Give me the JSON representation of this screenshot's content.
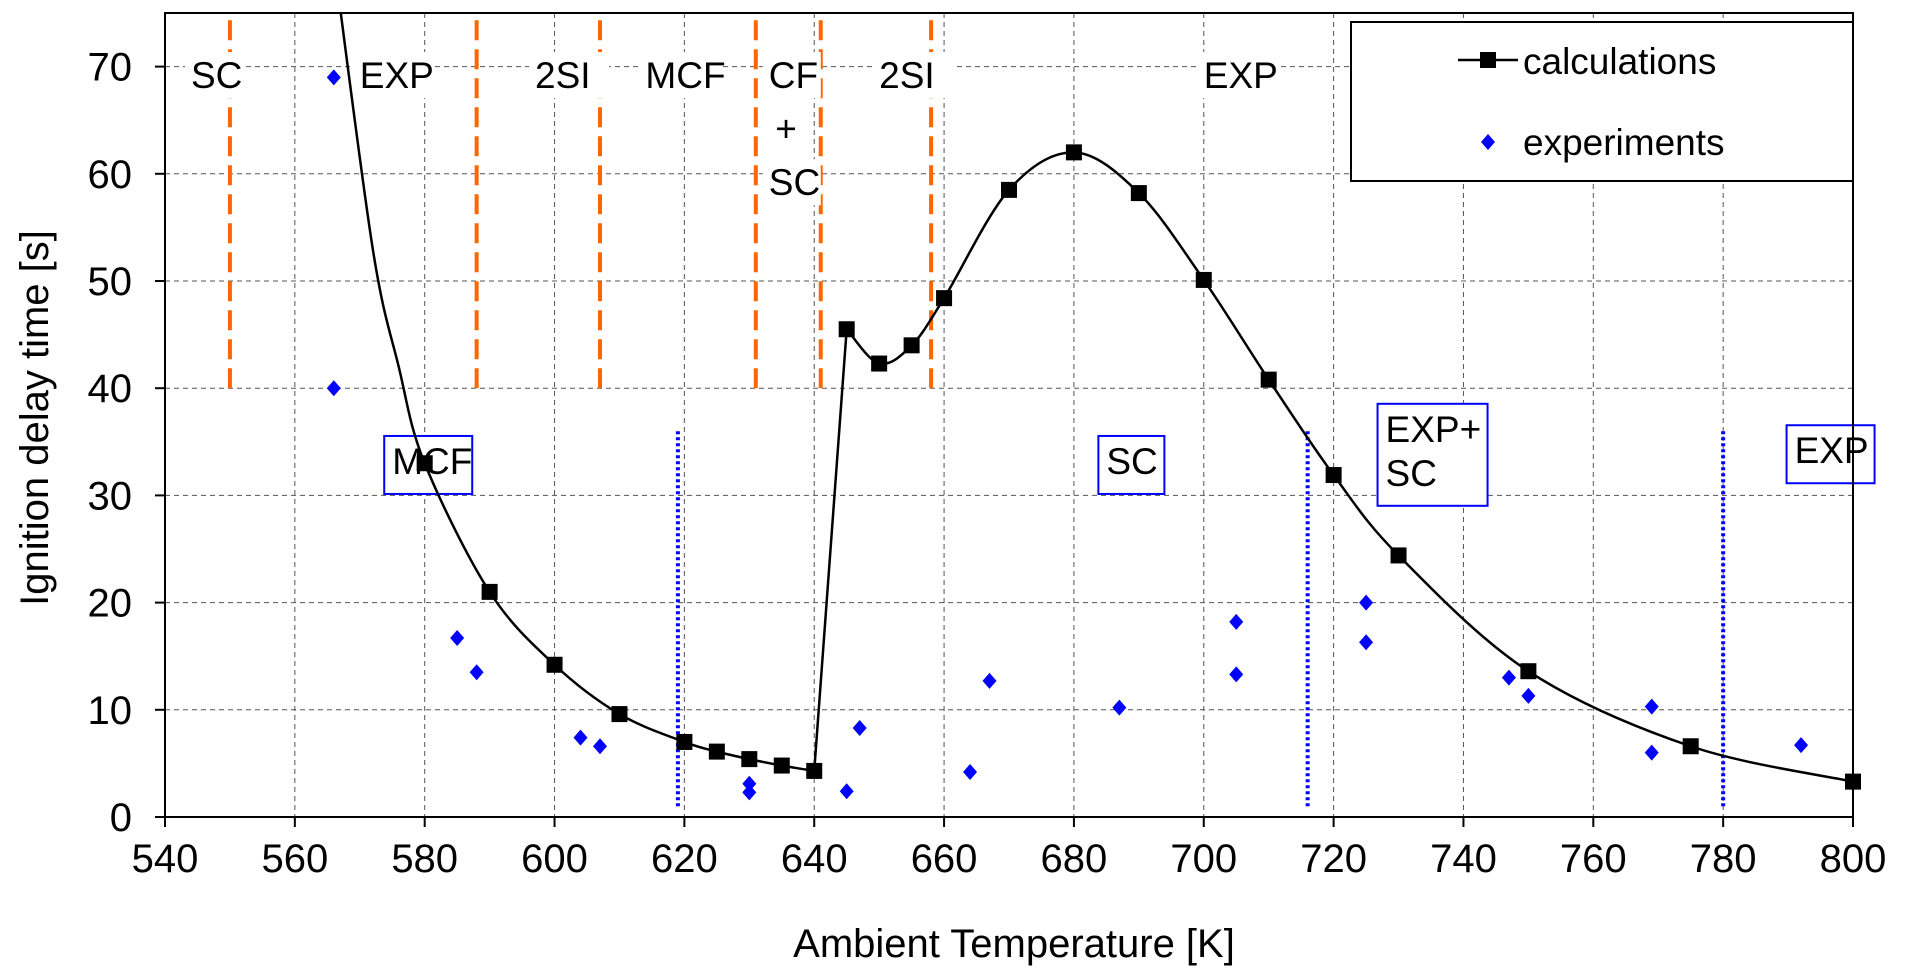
{
  "chart_data": {
    "type": "scatter",
    "title": "",
    "xlabel": "Ambient Temperature [K]",
    "ylabel": "Ignition delay time [s]",
    "xlim": [
      540,
      800
    ],
    "ylim": [
      0,
      75
    ],
    "x_ticks": [
      540,
      560,
      580,
      600,
      620,
      640,
      660,
      680,
      700,
      720,
      740,
      760,
      780,
      800
    ],
    "y_ticks": [
      0,
      10,
      20,
      30,
      40,
      50,
      60,
      70
    ],
    "grid": true,
    "legend_position": "top-right",
    "series": [
      {
        "name": "calculations",
        "style": "line-with-square-markers",
        "color": "#000000",
        "points": [
          [
            580,
            33.0
          ],
          [
            590,
            21.0
          ],
          [
            600,
            14.2
          ],
          [
            610,
            9.6
          ],
          [
            620,
            7.0
          ],
          [
            625,
            6.1
          ],
          [
            630,
            5.4
          ],
          [
            635,
            4.8
          ],
          [
            640,
            4.3
          ],
          [
            645,
            45.5
          ],
          [
            650,
            42.3
          ],
          [
            655,
            44.0
          ],
          [
            660,
            48.4
          ],
          [
            670,
            58.5
          ],
          [
            680,
            62.0
          ],
          [
            690,
            58.2
          ],
          [
            700,
            50.1
          ],
          [
            710,
            40.8
          ],
          [
            720,
            31.9
          ],
          [
            730,
            24.4
          ],
          [
            750,
            13.6
          ],
          [
            775,
            6.6
          ],
          [
            800,
            3.3
          ]
        ],
        "curve_extension_above_axis": [
          [
            566,
            80
          ],
          [
            572,
            53
          ],
          [
            576,
            42
          ]
        ]
      },
      {
        "name": "experiments",
        "style": "diamond-markers",
        "color": "#0000ff",
        "points": [
          [
            566,
            69.0
          ],
          [
            566,
            40.0
          ],
          [
            585,
            16.7
          ],
          [
            588,
            13.5
          ],
          [
            604,
            7.4
          ],
          [
            607,
            6.6
          ],
          [
            630,
            3.1
          ],
          [
            630,
            2.3
          ],
          [
            645,
            2.4
          ],
          [
            647,
            8.3
          ],
          [
            664,
            4.2
          ],
          [
            667,
            12.7
          ],
          [
            687,
            10.2
          ],
          [
            705,
            18.2
          ],
          [
            705,
            13.3
          ],
          [
            725,
            20.0
          ],
          [
            725,
            16.3
          ],
          [
            747,
            13.0
          ],
          [
            750,
            11.3
          ],
          [
            769,
            10.3
          ],
          [
            769,
            6.0
          ],
          [
            792,
            6.7
          ]
        ]
      }
    ],
    "calc_regime_dividers": {
      "color": "#ff6600",
      "style": "dashed",
      "x": [
        550,
        588,
        607,
        631,
        641,
        658
      ],
      "y_range": [
        40,
        75
      ]
    },
    "calc_regime_labels": [
      {
        "text": "SC",
        "x": 544,
        "y": 68
      },
      {
        "text": "EXP",
        "x": 570,
        "y": 68
      },
      {
        "text": "2SI",
        "x": 597,
        "y": 68
      },
      {
        "text": "MCF",
        "x": 614,
        "y": 68
      },
      {
        "text": "CF",
        "x": 633,
        "y": 68
      },
      {
        "text": "+",
        "x": 634,
        "y": 63
      },
      {
        "text": "SC",
        "x": 633,
        "y": 58
      },
      {
        "text": "2SI",
        "x": 650,
        "y": 68
      },
      {
        "text": "EXP",
        "x": 700,
        "y": 68
      }
    ],
    "exp_regime_dividers": {
      "color": "#0000ff",
      "style": "dotted",
      "x": [
        619,
        716,
        780
      ],
      "y_range": [
        1,
        36
      ]
    },
    "exp_regime_labels": [
      {
        "lines": [
          "MCF"
        ],
        "x": 575,
        "y": 32
      },
      {
        "lines": [
          "SC"
        ],
        "x": 685,
        "y": 32
      },
      {
        "lines": [
          "EXP+",
          "SC"
        ],
        "x": 728,
        "y": 35
      },
      {
        "lines": [
          "EXP"
        ],
        "x": 791,
        "y": 33
      }
    ],
    "legend_entries": [
      {
        "label": "calculations",
        "marker": "line-square",
        "color": "#000000"
      },
      {
        "label": "experiments",
        "marker": "diamond",
        "color": "#0000ff"
      }
    ]
  }
}
